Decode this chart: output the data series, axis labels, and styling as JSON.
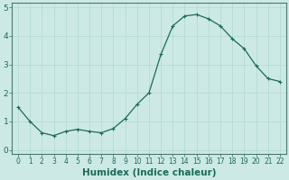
{
  "x": [
    0,
    1,
    2,
    3,
    4,
    5,
    6,
    7,
    8,
    9,
    10,
    11,
    12,
    13,
    14,
    15,
    16,
    17,
    18,
    19,
    20,
    21,
    22
  ],
  "y": [
    1.5,
    1.0,
    0.6,
    0.5,
    0.65,
    0.72,
    0.65,
    0.6,
    0.75,
    1.1,
    1.6,
    2.0,
    3.35,
    4.35,
    4.7,
    4.75,
    4.6,
    4.35,
    3.9,
    3.55,
    2.95,
    2.5,
    2.4
  ],
  "line_color": "#1a6b5a",
  "bg_color": "#cce9e5",
  "grid_color": "#b0d8d3",
  "xlabel": "Humidex (Indice chaleur)",
  "ylim": [
    -0.15,
    5.15
  ],
  "xlim": [
    -0.5,
    22.5
  ],
  "yticks": [
    0,
    1,
    2,
    3,
    4,
    5
  ],
  "xticks": [
    0,
    1,
    2,
    3,
    4,
    5,
    6,
    7,
    8,
    9,
    10,
    11,
    12,
    13,
    14,
    15,
    16,
    17,
    18,
    19,
    20,
    21,
    22
  ],
  "tick_label_fontsize": 5.5,
  "xlabel_fontsize": 7.5,
  "ytick_label_fontsize": 6.5,
  "marker": "+",
  "markersize": 3,
  "linewidth": 0.9
}
